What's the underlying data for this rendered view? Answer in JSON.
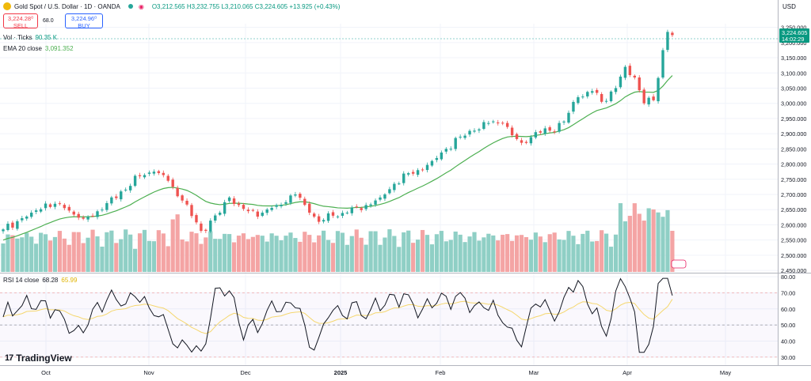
{
  "header": {
    "symbol": "Gold Spot / U.S. Dollar · 1D · OANDA",
    "open": "O3,212.565",
    "high": "H3,232.755",
    "low": "L3,210.065",
    "close": "C3,224.605",
    "change": "+13.925 (+0.43%)"
  },
  "trade": {
    "sell_price": "3,224.28⁰",
    "sell_label": "SELL",
    "spread": "68.0",
    "buy_price": "3,224.96⁰",
    "buy_label": "BUY"
  },
  "legends": {
    "vol_label": "Vol · Ticks",
    "vol_value": "90.35 K",
    "ema_label": "EMA 20 close",
    "ema_value": "3,091.352",
    "rsi_label": "RSI 14 close",
    "rsi_value": "68.28",
    "rsi_ma_value": "65.99"
  },
  "branding": {
    "name": "TradingView"
  },
  "colors": {
    "up": "#26a69a",
    "down": "#ef5350",
    "ema": "#4caf50",
    "rsi": "#131722",
    "rsi_ma": "#f5d76e",
    "vol_up": "#8fcfc5",
    "vol_down": "#f4a4a4",
    "axis_text": "#131722",
    "badge": "#089981"
  },
  "chart_data": [
    {
      "type": "candlestick",
      "currency_label": "USD",
      "ylim": [
        2445,
        3262
      ],
      "y_ticks": [
        2450,
        2500,
        2550,
        2600,
        2650,
        2700,
        2750,
        2800,
        2850,
        2900,
        2950,
        3000,
        3050,
        3100,
        3150,
        3200,
        3250
      ],
      "y_tick_labels": [
        "2,450.000",
        "2,500.000",
        "2,550.000",
        "2,600.000",
        "2,650.000",
        "2,700.000",
        "2,750.000",
        "2,800.000",
        "2,850.000",
        "2,900.000",
        "2,950.000",
        "3,000.000",
        "3,050.000",
        "3,100.000",
        "3,150.000",
        "3,200.000",
        "3,250.000"
      ],
      "x_ticks": [
        "Oct",
        "Nov",
        "Dec",
        "2025",
        "Feb",
        "Mar",
        "Apr",
        "May"
      ],
      "last_price_label": "3,224.605",
      "countdown_label": "14:02:29",
      "close_anchors": [
        [
          0,
          2585
        ],
        [
          6,
          2640
        ],
        [
          9,
          2670
        ],
        [
          13,
          2655
        ],
        [
          17,
          2620
        ],
        [
          21,
          2650
        ],
        [
          25,
          2710
        ],
        [
          29,
          2760
        ],
        [
          32,
          2775
        ],
        [
          35,
          2745
        ],
        [
          36,
          2725
        ],
        [
          38,
          2680
        ],
        [
          42,
          2580
        ],
        [
          46,
          2640
        ],
        [
          48,
          2690
        ],
        [
          50,
          2665
        ],
        [
          52,
          2645
        ],
        [
          55,
          2640
        ],
        [
          58,
          2665
        ],
        [
          62,
          2700
        ],
        [
          65,
          2640
        ],
        [
          67,
          2610
        ],
        [
          70,
          2630
        ],
        [
          73,
          2640
        ],
        [
          77,
          2665
        ],
        [
          80,
          2690
        ],
        [
          83,
          2735
        ],
        [
          86,
          2770
        ],
        [
          88,
          2780
        ],
        [
          91,
          2810
        ],
        [
          94,
          2850
        ],
        [
          97,
          2890
        ],
        [
          100,
          2910
        ],
        [
          103,
          2935
        ],
        [
          106,
          2935
        ],
        [
          108,
          2895
        ],
        [
          110,
          2870
        ],
        [
          113,
          2905
        ],
        [
          116,
          2910
        ],
        [
          119,
          2940
        ],
        [
          122,
          3020
        ],
        [
          125,
          3040
        ],
        [
          127,
          3005
        ],
        [
          130,
          3050
        ],
        [
          132,
          3120
        ],
        [
          134,
          3085
        ],
        [
          136,
          3000
        ],
        [
          138,
          3010
        ],
        [
          140,
          3175
        ],
        [
          141,
          3235
        ],
        [
          142,
          3224.605
        ]
      ],
      "ema20_last": 3091.352
    },
    {
      "type": "bar",
      "name": "Vol · Ticks",
      "last_value_thousands": 90.35
    },
    {
      "type": "line",
      "name": "RSI 14 close",
      "ylim": [
        25,
        82
      ],
      "y_ticks": [
        30,
        40,
        50,
        60,
        70,
        80
      ],
      "y_tick_labels": [
        "30.00",
        "40.00",
        "50.00",
        "60.00",
        "70.00",
        "80.00"
      ],
      "dashed_levels": [
        70,
        50,
        30
      ],
      "last_value": 68.28,
      "ma_last_value": 65.99
    }
  ]
}
